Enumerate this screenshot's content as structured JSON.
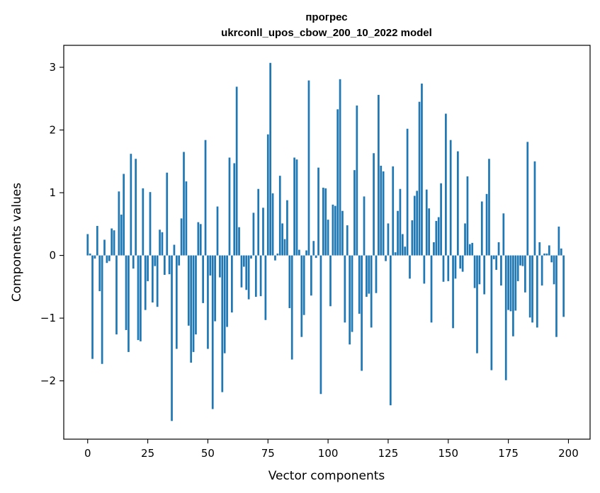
{
  "chart_data": {
    "type": "bar",
    "title_line1": "прогрес",
    "title_line2": "ukrconll_upos_cbow_200_10_2022 model",
    "xlabel": "Vector components",
    "ylabel": "Components values",
    "xlim": [
      -9.95,
      209
    ],
    "ylim": [
      -2.93,
      3.35
    ],
    "xticks": [
      0,
      25,
      50,
      75,
      100,
      125,
      150,
      175,
      200
    ],
    "yticks": [
      -2,
      -1,
      0,
      1,
      2,
      3
    ],
    "grid": false,
    "bar_color": "#1f77b4",
    "values": [
      0.34,
      0.03,
      -1.65,
      -0.05,
      0.47,
      -0.57,
      -1.73,
      0.25,
      -0.12,
      -0.09,
      0.43,
      0.4,
      -1.26,
      1.02,
      0.65,
      1.3,
      -1.19,
      -1.54,
      1.62,
      -0.21,
      1.54,
      -1.35,
      -1.37,
      1.07,
      -0.87,
      -0.41,
      1.01,
      -0.75,
      -0.17,
      -0.82,
      0.41,
      0.37,
      -0.31,
      1.32,
      -0.3,
      -2.64,
      0.17,
      -1.49,
      -0.16,
      0.59,
      1.65,
      1.18,
      -1.12,
      -1.71,
      -1.54,
      -1.26,
      0.53,
      0.5,
      -0.76,
      1.84,
      -1.49,
      -0.32,
      -2.45,
      -1.05,
      0.78,
      -0.35,
      -2.18,
      -1.56,
      -1.14,
      1.56,
      -0.91,
      1.47,
      2.69,
      0.45,
      -0.51,
      -0.18,
      -0.55,
      -0.7,
      -0.05,
      0.68,
      -0.66,
      1.06,
      -0.65,
      0.76,
      -1.03,
      1.93,
      3.07,
      0.99,
      -0.08,
      0.03,
      1.27,
      0.51,
      0.26,
      0.88,
      -0.84,
      -1.66,
      1.56,
      1.53,
      0.09,
      -1.3,
      -0.95,
      0.08,
      2.79,
      -0.64,
      0.23,
      -0.04,
      1.4,
      -2.21,
      1.08,
      1.07,
      0.57,
      -0.81,
      0.81,
      0.79,
      2.33,
      2.81,
      0.71,
      -1.07,
      0.48,
      -1.42,
      -1.22,
      1.36,
      2.39,
      -0.93,
      -1.84,
      0.94,
      -0.66,
      -0.61,
      -1.15,
      1.63,
      -0.6,
      2.56,
      1.43,
      1.34,
      -0.09,
      0.51,
      -2.39,
      1.42,
      0.05,
      0.71,
      1.06,
      0.34,
      0.14,
      2.02,
      -0.37,
      0.56,
      0.95,
      1.03,
      2.45,
      2.74,
      -0.45,
      1.05,
      0.75,
      -1.07,
      0.21,
      0.55,
      0.61,
      1.15,
      -0.42,
      2.26,
      -0.41,
      1.84,
      -1.16,
      -0.37,
      1.66,
      -0.21,
      -0.26,
      0.51,
      1.26,
      0.18,
      0.2,
      -0.52,
      -1.56,
      -0.46,
      0.86,
      -0.62,
      0.98,
      1.54,
      -1.83,
      -0.06,
      -0.23,
      0.21,
      -0.48,
      0.67,
      -1.99,
      -0.87,
      -0.89,
      -1.29,
      -0.88,
      -0.41,
      -0.16,
      -0.17,
      -0.59,
      1.81,
      -0.99,
      -1.07,
      1.5,
      -1.15,
      0.21,
      -0.48,
      0.03,
      0.03,
      0.16,
      -0.11,
      -0.46,
      -1.3,
      0.46,
      0.11,
      -0.98
    ]
  }
}
